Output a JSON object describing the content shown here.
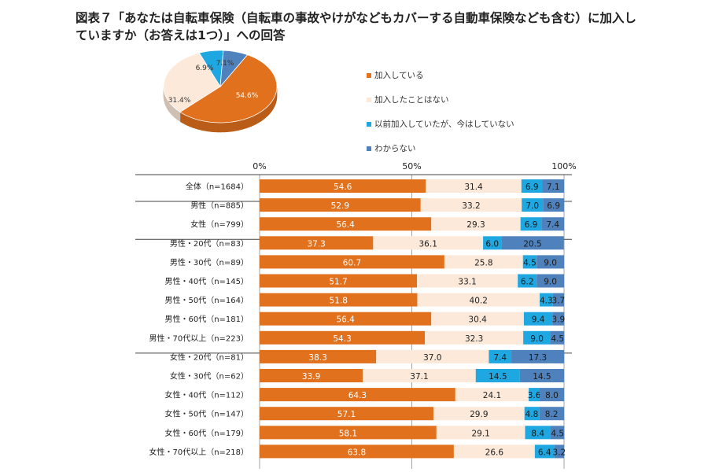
{
  "title": "図表７「あなたは自転車保険（自転車の事故やけがなどもカバーする自動車保険なども含む）に加入していますか（お答えは1つ）」への回答",
  "colors": {
    "joined": "#e2711d",
    "never": "#fde9d9",
    "former": "#1ea7e1",
    "unknown": "#4f81bd"
  },
  "chart_data": [
    {
      "type": "pie",
      "slices": [
        {
          "label": "加入している",
          "value": 54.6,
          "value_label": "54.6%"
        },
        {
          "label": "加入したことはない",
          "value": 31.4,
          "value_label": "31.4%"
        },
        {
          "label": "以前加入していたが、今はしていない",
          "value": 6.9,
          "value_label": "6.9%"
        },
        {
          "label": "わからない",
          "value": 7.1,
          "value_label": "7.1%"
        }
      ],
      "legend": {
        "position": "right",
        "entries": [
          "加入している",
          "加入したことはない",
          "以前加入していたが、今はしていない",
          "わからない"
        ]
      }
    },
    {
      "type": "bar",
      "orientation": "horizontal",
      "stacked": "percent",
      "xlim": [
        0,
        100
      ],
      "xticks": [
        "0%",
        "50%",
        "100%"
      ],
      "series_names": [
        "加入している",
        "加入したことはない",
        "以前加入していたが、今はしていない",
        "わからない"
      ],
      "rows": [
        {
          "label": "全体（n=1684）",
          "values": [
            54.6,
            31.4,
            6.9,
            7.1
          ],
          "value_labels": [
            "54.6",
            "31.4",
            "6.9",
            "7.1"
          ]
        },
        {
          "label": "男性（n=885）",
          "values": [
            52.9,
            33.2,
            7.0,
            6.9
          ],
          "value_labels": [
            "52.9",
            "33.2",
            "7.0",
            "6.9"
          ]
        },
        {
          "label": "女性（n=799）",
          "values": [
            56.4,
            29.3,
            6.9,
            7.4
          ],
          "value_labels": [
            "56.4",
            "29.3",
            "6.9",
            "7.4"
          ]
        },
        {
          "label": "男性・20代（n=83）",
          "values": [
            37.3,
            36.1,
            6.0,
            20.5
          ],
          "value_labels": [
            "37.3",
            "36.1",
            "6.0",
            "20.5"
          ]
        },
        {
          "label": "男性・30代（n=89）",
          "values": [
            60.7,
            25.8,
            4.5,
            9.0
          ],
          "value_labels": [
            "60.7",
            "25.8",
            "4.5",
            "9.0"
          ]
        },
        {
          "label": "男性・40代（n=145）",
          "values": [
            51.7,
            33.1,
            6.2,
            9.0
          ],
          "value_labels": [
            "51.7",
            "33.1",
            "6.2",
            "9.0"
          ]
        },
        {
          "label": "男性・50代（n=164）",
          "values": [
            51.8,
            40.2,
            4.3,
            3.7
          ],
          "value_labels": [
            "51.8",
            "40.2",
            "4.3",
            "3.7"
          ]
        },
        {
          "label": "男性・60代（n=181）",
          "values": [
            56.4,
            30.4,
            9.4,
            3.9
          ],
          "value_labels": [
            "56.4",
            "30.4",
            "9.4",
            "3.9"
          ]
        },
        {
          "label": "男性・70代以上（n=223）",
          "values": [
            54.3,
            32.3,
            9.0,
            4.5
          ],
          "value_labels": [
            "54.3",
            "32.3",
            "9.0",
            "4.5"
          ]
        },
        {
          "label": "女性・20代（n=81）",
          "values": [
            38.3,
            37.0,
            7.4,
            17.3
          ],
          "value_labels": [
            "38.3",
            "37.0",
            "7.4",
            "17.3"
          ]
        },
        {
          "label": "女性・30代（n=62）",
          "values": [
            33.9,
            37.1,
            14.5,
            14.5
          ],
          "value_labels": [
            "33.9",
            "37.1",
            "14.5",
            "14.5"
          ]
        },
        {
          "label": "女性・40代（n=112）",
          "values": [
            64.3,
            24.1,
            3.6,
            8.0
          ],
          "value_labels": [
            "64.3",
            "24.1",
            "3.6",
            "8.0"
          ]
        },
        {
          "label": "女性・50代（n=147）",
          "values": [
            57.1,
            29.9,
            4.8,
            8.2
          ],
          "value_labels": [
            "57.1",
            "29.9",
            "4.8",
            "8.2"
          ]
        },
        {
          "label": "女性・60代（n=179）",
          "values": [
            58.1,
            29.1,
            8.4,
            4.5
          ],
          "value_labels": [
            "58.1",
            "29.1",
            "8.4",
            "4.5"
          ]
        },
        {
          "label": "女性・70代以上（n=218）",
          "values": [
            63.8,
            26.6,
            6.4,
            3.2
          ],
          "value_labels": [
            "63.8",
            "26.6",
            "6.4",
            "3.2"
          ]
        }
      ]
    }
  ]
}
